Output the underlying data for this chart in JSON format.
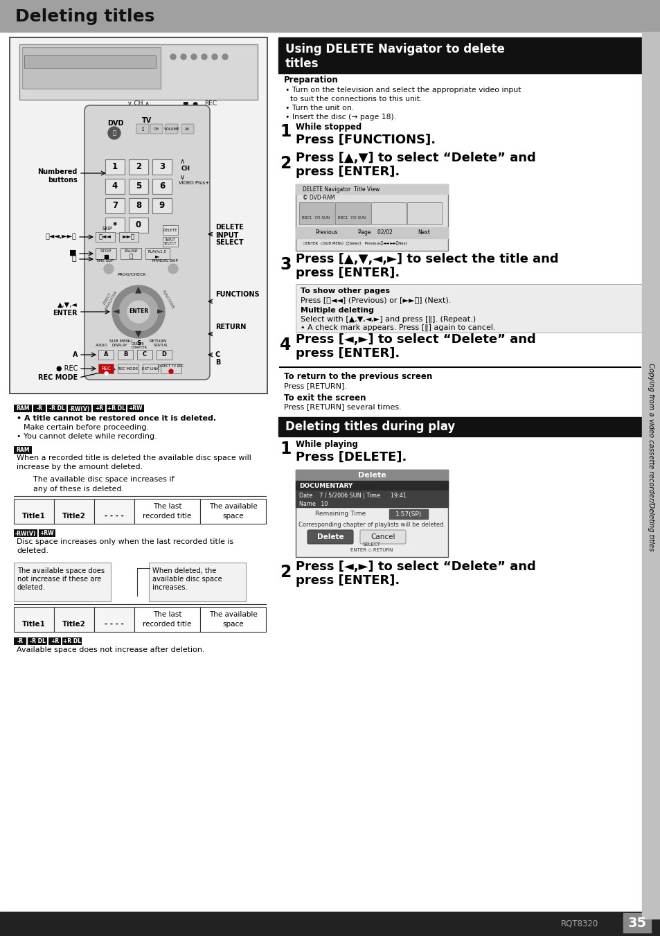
{
  "page_title": "Deleting titles",
  "header_bg": "#a0a0a0",
  "header_text": "#111111",
  "page_bg": "#ffffff",
  "left_panel_border": "#333333",
  "left_panel_bg": "#f2f2f2",
  "section1_title_l1": "Using DELETE Navigator to delete",
  "section1_title_l2": "titles",
  "section_bg": "#111111",
  "section_fg": "#ffffff",
  "section2_title": "Deleting titles during play",
  "sidebar_bg": "#c0c0c0",
  "sidebar_text": "Copying from a video cassette recorder/Deleting titles",
  "bottom_bg": "#222222",
  "page_number": "35",
  "model": "RQT8320",
  "badge_bg": "#111111",
  "badge_fg": "#ffffff",
  "info_box_bg": "#ececec",
  "info_box_border": "#aaaaaa",
  "table_bg": "#f0f0f0",
  "table_border": "#333333",
  "annot_box_bg": "#f2f2f2",
  "annot_box_border": "#999999"
}
